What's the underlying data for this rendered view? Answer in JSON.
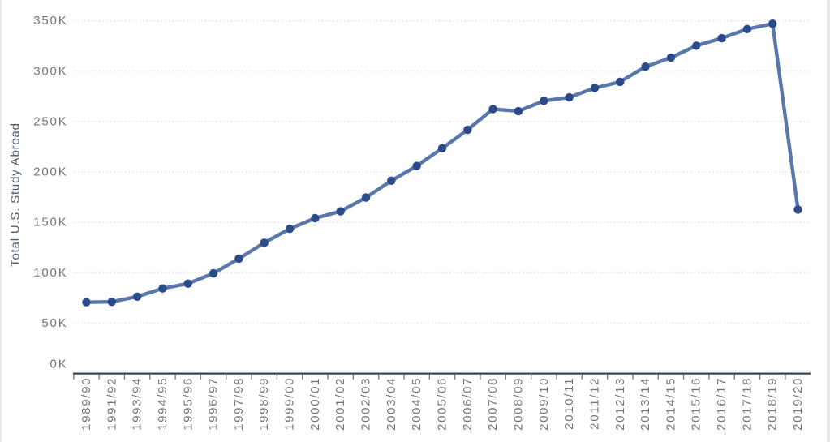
{
  "chart_data": {
    "type": "line",
    "title": "",
    "xlabel": "",
    "ylabel": "Total U.S. Study Abroad",
    "categories": [
      "1989/90",
      "1991/92",
      "1993/94",
      "1994/95",
      "1995/96",
      "1996/97",
      "1997/98",
      "1998/99",
      "1999/00",
      "2000/01",
      "2001/02",
      "2002/03",
      "2003/04",
      "2004/05",
      "2005/06",
      "2006/07",
      "2007/08",
      "2008/09",
      "2009/10",
      "2010/11",
      "2011/12",
      "2012/13",
      "2013/14",
      "2014/15",
      "2015/16",
      "2016/17",
      "2017/18",
      "2018/19",
      "2019/20"
    ],
    "series": [
      {
        "name": "Total U.S. Study Abroad",
        "values": [
          70727,
          71154,
          76302,
          84403,
          89242,
          99448,
          113959,
          129770,
          143590,
          154168,
          160920,
          174629,
          191321,
          205983,
          223534,
          241791,
          262416,
          260327,
          270604,
          273996,
          283332,
          289408,
          304467,
          313415,
          325339,
          332727,
          341751,
          347099,
          162633
        ]
      }
    ],
    "ylim": [
      0,
      350000
    ],
    "y_tick_values": [
      0,
      50000,
      100000,
      150000,
      200000,
      250000,
      300000,
      350000
    ],
    "y_tick_labels": [
      "0K",
      "50K",
      "100K",
      "150K",
      "200K",
      "250K",
      "300K",
      "350K"
    ],
    "grid": "horizontal-dotted",
    "legend_position": "none",
    "marker": "circle",
    "colors": {
      "line": "#5977ab",
      "marker": "#2a4a8a",
      "axis_line": "#33475c",
      "tick_mark": "#7f7f7f",
      "tick_label": "#757575",
      "axis_title": "#4f5d6a",
      "gridline": "#e0e0e0",
      "background": "#ffffff"
    }
  }
}
